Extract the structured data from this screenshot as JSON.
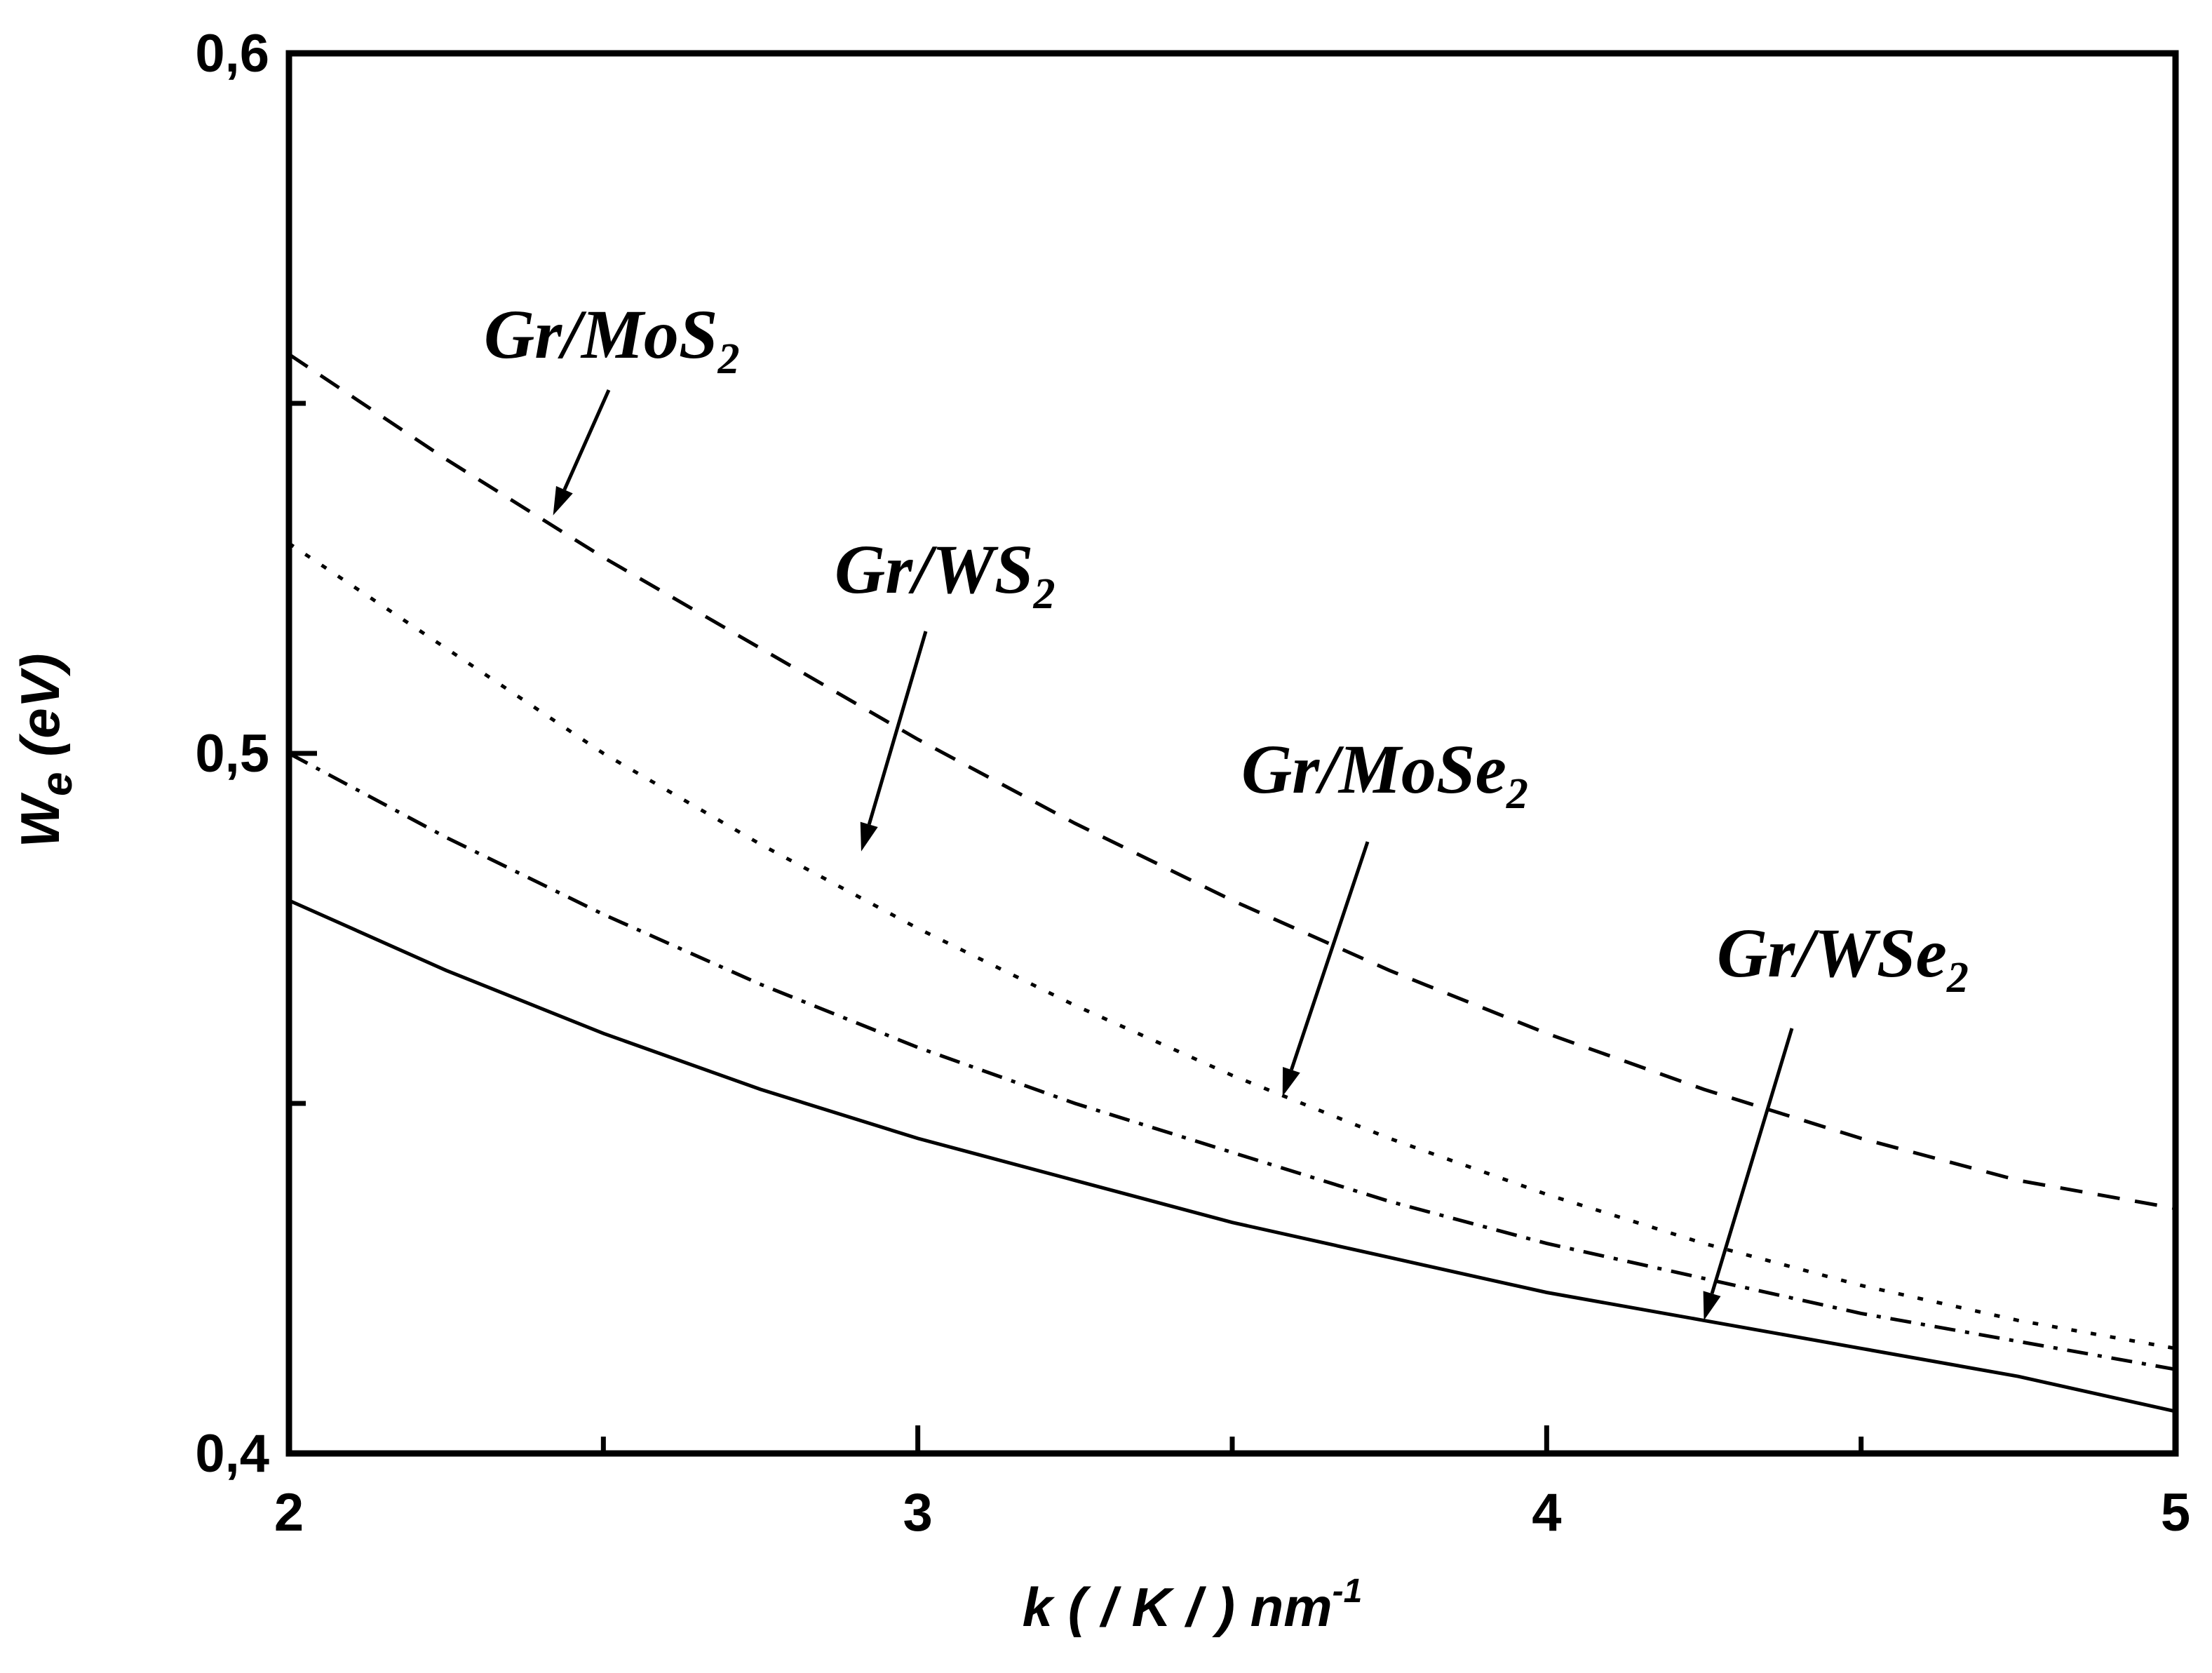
{
  "chart_data": {
    "type": "line",
    "xlabel": {
      "main": "k ( / K / ) nm",
      "sup": "-1"
    },
    "ylabel": {
      "main": "W",
      "sub": "e",
      "unit": " (eV)"
    },
    "xlim": [
      2,
      5
    ],
    "ylim": [
      0.4,
      0.6
    ],
    "xticks": [
      {
        "value": 2,
        "label": "2"
      },
      {
        "value": 3,
        "label": "3"
      },
      {
        "value": 4,
        "label": "4"
      },
      {
        "value": 5,
        "label": "5"
      }
    ],
    "yticks": [
      {
        "value": 0.4,
        "label": "0,4"
      },
      {
        "value": 0.5,
        "label": "0,5"
      },
      {
        "value": 0.6,
        "label": "0,6"
      }
    ],
    "grid": false,
    "series": [
      {
        "name": "Gr/MoS2",
        "label_main": "Gr/MoS",
        "label_sub": "2",
        "style": "dashed",
        "x": [
          2.0,
          2.25,
          2.5,
          2.75,
          3.0,
          3.25,
          3.5,
          3.75,
          4.0,
          4.25,
          4.5,
          4.75,
          5.0
        ],
        "y": [
          0.557,
          0.542,
          0.528,
          0.515,
          0.502,
          0.49,
          0.479,
          0.469,
          0.46,
          0.452,
          0.445,
          0.439,
          0.435
        ]
      },
      {
        "name": "Gr/WS2",
        "label_main": "Gr/WS",
        "label_sub": "2",
        "style": "dotted",
        "x": [
          2.0,
          2.25,
          2.5,
          2.75,
          3.0,
          3.25,
          3.5,
          3.75,
          4.0,
          4.25,
          4.5,
          4.75,
          5.0
        ],
        "y": [
          0.53,
          0.515,
          0.5,
          0.487,
          0.475,
          0.464,
          0.454,
          0.445,
          0.437,
          0.43,
          0.424,
          0.419,
          0.415
        ]
      },
      {
        "name": "Gr/MoSe2",
        "label_main": "Gr/MoSe",
        "label_sub": "2",
        "style": "dashdot",
        "x": [
          2.0,
          2.25,
          2.5,
          2.75,
          3.0,
          3.25,
          3.5,
          3.75,
          4.0,
          4.25,
          4.5,
          4.75,
          5.0
        ],
        "y": [
          0.5,
          0.488,
          0.477,
          0.467,
          0.458,
          0.45,
          0.443,
          0.436,
          0.43,
          0.425,
          0.42,
          0.416,
          0.412
        ]
      },
      {
        "name": "Gr/WSe2",
        "label_main": "Gr/WSe",
        "label_sub": "2",
        "style": "solid",
        "x": [
          2.0,
          2.25,
          2.5,
          2.75,
          3.0,
          3.25,
          3.5,
          3.75,
          4.0,
          4.25,
          4.5,
          4.75,
          5.0
        ],
        "y": [
          0.479,
          0.469,
          0.46,
          0.452,
          0.445,
          0.439,
          0.433,
          0.428,
          0.423,
          0.419,
          0.415,
          0.411,
          0.406
        ]
      }
    ],
    "annotations": [
      {
        "series": "Gr/MoS2",
        "arrow_tip": [
          2.42,
          0.534
        ]
      },
      {
        "series": "Gr/WS2",
        "arrow_tip": [
          2.91,
          0.486
        ]
      },
      {
        "series": "Gr/MoSe2",
        "arrow_tip": [
          3.58,
          0.451
        ]
      },
      {
        "series": "Gr/WSe2",
        "arrow_tip": [
          4.25,
          0.419
        ]
      }
    ]
  }
}
